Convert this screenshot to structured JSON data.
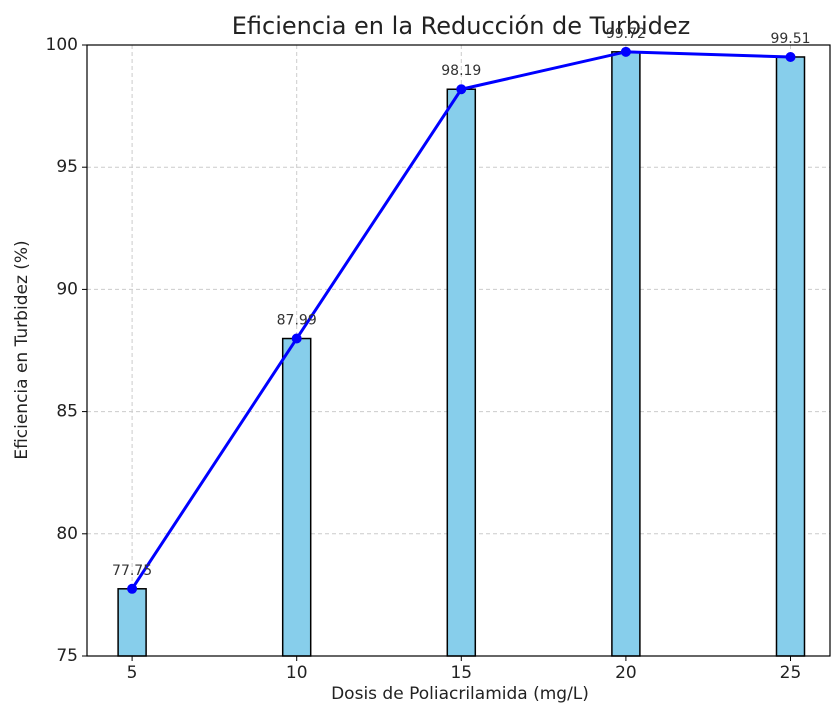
{
  "chart_data": {
    "type": "bar",
    "title": "Eficiencia en la Reducción de Turbidez",
    "xlabel": "Dosis de Poliacrilamida (mg/L)",
    "ylabel": "Eficiencia en Turbidez (%)",
    "x": [
      5,
      10,
      15,
      20,
      25
    ],
    "values": [
      77.75,
      87.99,
      98.19,
      99.72,
      99.51
    ],
    "color": "#87ceeb",
    "line_color": "#0000ff",
    "xlim": [
      3.63,
      26.2
    ],
    "ylim": [
      75,
      100
    ],
    "xticks": [
      5,
      10,
      15,
      20,
      25
    ],
    "yticks": [
      75,
      80,
      85,
      90,
      95,
      100
    ],
    "grid": true
  }
}
